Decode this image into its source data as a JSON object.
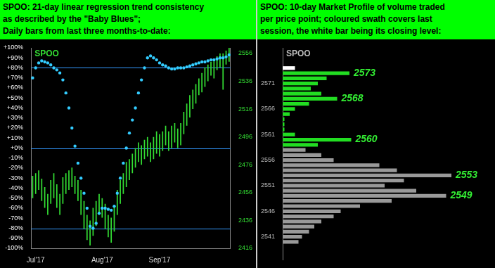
{
  "chart_data": [
    {
      "type": "line",
      "title": [
        "SPOO:  21-day linear regression trend consistency",
        "as described by the \"Baby Blues\";",
        "Daily bars from last three months-to-date:"
      ],
      "annotations": [
        {
          "text": "SPOO"
        }
      ],
      "categories": [
        null,
        "Jul'17",
        null,
        null,
        null,
        null,
        null,
        null,
        null,
        null,
        null,
        null,
        null,
        null,
        null,
        null,
        null,
        null,
        null,
        null,
        null,
        null,
        null,
        "Aug'17",
        null,
        null,
        null,
        null,
        null,
        null,
        null,
        null,
        null,
        null,
        null,
        null,
        null,
        null,
        null,
        null,
        null,
        null,
        "Sep'17",
        null,
        null,
        null,
        null,
        null,
        null,
        null,
        null,
        null,
        null,
        null,
        null,
        null,
        null,
        null,
        null,
        null,
        null,
        null,
        null,
        null,
        null,
        null
      ],
      "series": [
        {
          "type": "scatter",
          "marker": "circle",
          "line_style": "none",
          "color": "#33ccff",
          "axis": "y",
          "values": [
            70,
            80,
            85,
            87,
            86,
            85,
            83,
            80,
            78,
            75,
            68,
            55,
            40,
            20,
            2,
            -15,
            -30,
            -45,
            -60,
            -78,
            -80,
            -75,
            -65,
            -60,
            -60,
            -61,
            -62,
            -58,
            -45,
            -30,
            -15,
            0,
            15,
            28,
            40,
            55,
            68,
            80,
            90,
            92,
            90,
            88,
            85,
            83,
            82,
            80,
            79,
            79,
            80,
            80,
            80,
            81,
            82,
            83,
            84,
            85,
            86,
            86,
            87,
            88,
            88,
            89,
            90,
            90,
            91,
            93
          ]
        },
        {
          "type": "bar",
          "color": "#33dd33",
          "axis": "y2",
          "values": [
            [
              2452,
              2468
            ],
            [
              2455,
              2470
            ],
            [
              2458,
              2472
            ],
            [
              2450,
              2466
            ],
            [
              2445,
              2460
            ],
            [
              2440,
              2455
            ],
            [
              2448,
              2465
            ],
            [
              2452,
              2470
            ],
            [
              2445,
              2462
            ],
            [
              2440,
              2455
            ],
            [
              2448,
              2467
            ],
            [
              2455,
              2470
            ],
            [
              2458,
              2472
            ],
            [
              2460,
              2474
            ],
            [
              2455,
              2468
            ],
            [
              2450,
              2465
            ],
            [
              2440,
              2458
            ],
            [
              2430,
              2450
            ],
            [
              2422,
              2440
            ],
            [
              2418,
              2436
            ],
            [
              2425,
              2445
            ],
            [
              2432,
              2450
            ],
            [
              2440,
              2455
            ],
            [
              2438,
              2452
            ],
            [
              2430,
              2448
            ],
            [
              2424,
              2440
            ],
            [
              2420,
              2438
            ],
            [
              2428,
              2446
            ],
            [
              2440,
              2458
            ],
            [
              2448,
              2465
            ],
            [
              2455,
              2470
            ],
            [
              2460,
              2478
            ],
            [
              2465,
              2480
            ],
            [
              2470,
              2484
            ],
            [
              2474,
              2488
            ],
            [
              2478,
              2492
            ],
            [
              2476,
              2490
            ],
            [
              2480,
              2494
            ],
            [
              2482,
              2496
            ],
            [
              2478,
              2492
            ],
            [
              2480,
              2496
            ],
            [
              2484,
              2500
            ],
            [
              2482,
              2498
            ],
            [
              2486,
              2500
            ],
            [
              2490,
              2504
            ],
            [
              2486,
              2500
            ],
            [
              2488,
              2504
            ],
            [
              2492,
              2506
            ],
            [
              2488,
              2502
            ],
            [
              2490,
              2506
            ],
            [
              2498,
              2514
            ],
            [
              2504,
              2520
            ],
            [
              2510,
              2526
            ],
            [
              2516,
              2530
            ],
            [
              2520,
              2534
            ],
            [
              2526,
              2538
            ],
            [
              2528,
              2542
            ],
            [
              2532,
              2546
            ],
            [
              2536,
              2548
            ],
            [
              2540,
              2550
            ],
            [
              2538,
              2552
            ],
            [
              2544,
              2554
            ],
            [
              2546,
              2556
            ],
            [
              2530,
              2556
            ],
            [
              2548,
              2558
            ],
            [
              2550,
              2560
            ]
          ]
        }
      ],
      "reference_lines": [
        80,
        0,
        -80
      ],
      "ylim": [
        -100,
        100
      ],
      "yticks": [
        {
          "value": 100,
          "label": "+100%"
        },
        {
          "value": 90,
          "label": "+90%"
        },
        {
          "value": 80,
          "label": "+80%"
        },
        {
          "value": 70,
          "label": "+70%"
        },
        {
          "value": 60,
          "label": "+60%"
        },
        {
          "value": 50,
          "label": "+50%"
        },
        {
          "value": 40,
          "label": "+40%"
        },
        {
          "value": 30,
          "label": "+30%"
        },
        {
          "value": 20,
          "label": "+20%"
        },
        {
          "value": 10,
          "label": "+10%"
        },
        {
          "value": 0,
          "label": "+0%"
        },
        {
          "value": -10,
          "label": "-10%"
        },
        {
          "value": -20,
          "label": "-20%"
        },
        {
          "value": -30,
          "label": "-30%"
        },
        {
          "value": -40,
          "label": "-40%"
        },
        {
          "value": -50,
          "label": "-50%"
        },
        {
          "value": -60,
          "label": "-60%"
        },
        {
          "value": -70,
          "label": "-70%"
        },
        {
          "value": -80,
          "label": "-80%"
        },
        {
          "value": -90,
          "label": "-90%"
        },
        {
          "value": -100,
          "label": "-100%"
        }
      ],
      "y2lim": [
        2416,
        2560
      ],
      "y2ticks": [
        2416,
        2436,
        2456,
        2476,
        2496,
        2516,
        2536,
        2556
      ],
      "grid": false
    },
    {
      "type": "bar",
      "orientation": "horizontal",
      "title": [
        "SPOO:  10-day Market Profile of volume traded",
        "per price point; coloured swath covers last",
        "session, the white bar being its closing level:"
      ],
      "annotations": [
        {
          "text": "SPOO"
        },
        {
          "text": "2573",
          "y": 2573
        },
        {
          "text": "2568",
          "y": 2568
        },
        {
          "text": "2560",
          "y": 2560
        },
        {
          "text": "2553",
          "y": 2553
        },
        {
          "text": "2549",
          "y": 2549
        }
      ],
      "y": [
        2574,
        2573,
        2572,
        2571,
        2570,
        2569,
        2568,
        2567,
        2566,
        2565,
        2564,
        2563,
        2562,
        2561,
        2560,
        2559,
        2558,
        2557,
        2556,
        2555,
        2554,
        2553,
        2552,
        2551,
        2550,
        2549,
        2548,
        2547,
        2546,
        2545,
        2544,
        2543,
        2542,
        2541,
        2540
      ],
      "values": [
        7,
        38,
        25,
        20,
        16,
        22,
        31,
        15,
        7,
        4,
        1,
        1,
        1,
        7,
        39,
        20,
        13,
        22,
        29,
        55,
        65,
        96,
        69,
        58,
        76,
        93,
        62,
        44,
        33,
        29,
        22,
        18,
        15,
        11,
        9
      ],
      "colors": [
        "#ffffff",
        "#22dd22",
        "#22dd22",
        "#22dd22",
        "#22dd22",
        "#22dd22",
        "#22dd22",
        "#22dd22",
        "#22dd22",
        "#22dd22",
        "#22dd22",
        "#22dd22",
        "#22dd22",
        "#22dd22",
        "#22dd22",
        "#22dd22",
        "#999999",
        "#999999",
        "#999999",
        "#999999",
        "#999999",
        "#999999",
        "#999999",
        "#999999",
        "#999999",
        "#999999",
        "#999999",
        "#999999",
        "#999999",
        "#999999",
        "#999999",
        "#999999",
        "#999999",
        "#999999",
        "#999999"
      ],
      "ylim": [
        2539.5,
        2575
      ],
      "yticks": [
        2541,
        2546,
        2551,
        2556,
        2561,
        2566,
        2571
      ],
      "tick_labels": "y",
      "grid": false
    }
  ]
}
